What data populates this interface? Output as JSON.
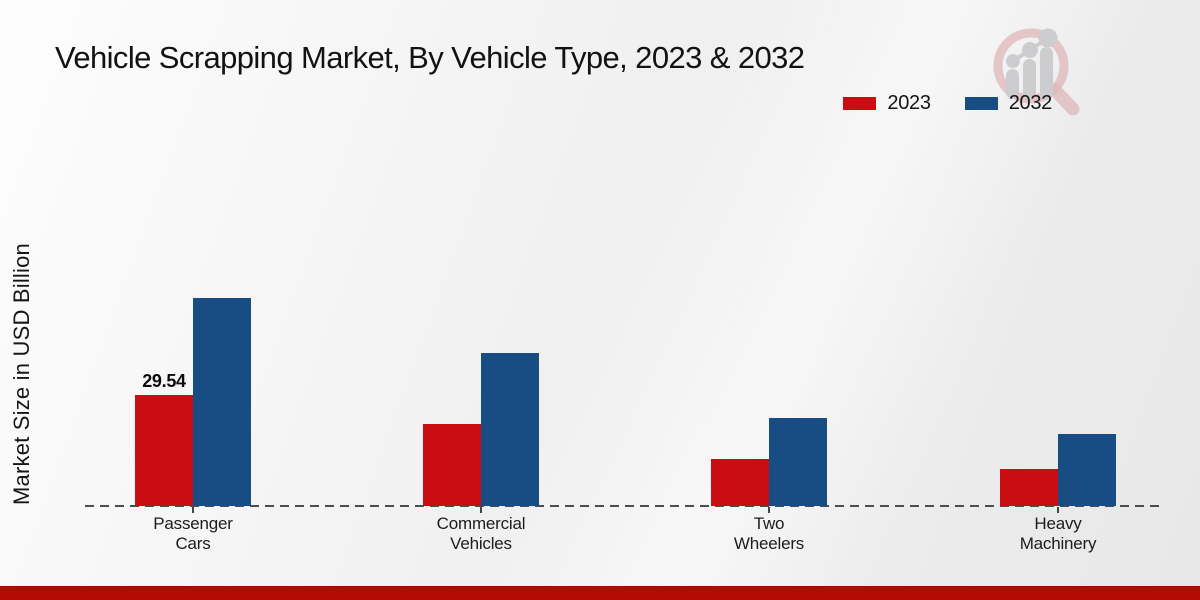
{
  "page": {
    "title": "Vehicle Scrapping Market, By Vehicle Type, 2023 & 2032",
    "ylabel": "Market Size in USD Billion",
    "watermark_icon": "magnifier-bar-chart-logo"
  },
  "colors": {
    "series_2023": "#c90d12",
    "series_2032": "#174d83",
    "baseline": "#4d4d4d",
    "footer_bar": "#b30a02",
    "text": "#141414",
    "watermark_ring": "#dcaeb1",
    "watermark_gray": "#c7c7cb"
  },
  "legend": {
    "position": "top-right",
    "items": [
      {
        "label": "2023",
        "color": "#c90d12"
      },
      {
        "label": "2032",
        "color": "#174d83"
      }
    ]
  },
  "chart_data": {
    "type": "bar",
    "title": "Vehicle Scrapping Market, By Vehicle Type, 2023 & 2032",
    "xlabel": "",
    "ylabel": "Market Size in USD Billion",
    "categories": [
      "Passenger Cars",
      "Commercial Vehicles",
      "Two Wheelers",
      "Heavy Machinery"
    ],
    "series": [
      {
        "name": "2023",
        "color": "#c90d12",
        "values": [
          29.54,
          21.8,
          12.5,
          9.8
        ]
      },
      {
        "name": "2032",
        "color": "#174d83",
        "values": [
          55.3,
          40.7,
          23.4,
          19.2
        ]
      }
    ],
    "data_labels": [
      {
        "series": "2023",
        "category": "Passenger Cars",
        "text": "29.54"
      }
    ],
    "ylim": [
      0,
      60
    ],
    "grid": false,
    "legend_position": "top-right",
    "baseline_style": "dashed"
  }
}
